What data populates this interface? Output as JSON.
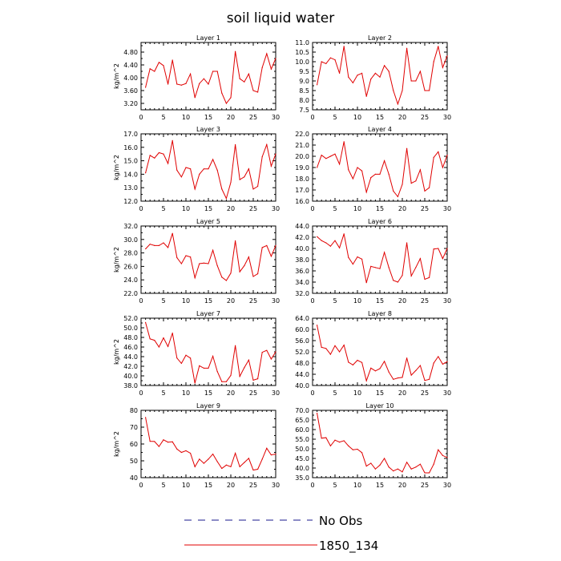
{
  "figure": {
    "title": "soil liquid water",
    "legend": {
      "placement": "bottom-center",
      "entries": [
        {
          "label": "No Obs",
          "style": "dashed",
          "color": "#1a1a8c"
        },
        {
          "label": "1850_134",
          "style": "solid",
          "color": "#e00000"
        }
      ]
    },
    "colors": {
      "series": "#e00000",
      "obs": "#1a1a8c",
      "axis": "#000000"
    }
  },
  "chart_data": [
    {
      "type": "line",
      "title": "Layer 1",
      "ylabel": "kg/m^2",
      "xlim": [
        0,
        30
      ],
      "ylim": [
        3.0,
        5.1
      ],
      "xticks": [
        "0",
        "5",
        "10",
        "15",
        "20",
        "25",
        "30"
      ],
      "yticks": [
        "3.20",
        "3.60",
        "4.00",
        "4.40",
        "4.80"
      ],
      "x": [
        1,
        2,
        3,
        4,
        5,
        6,
        7,
        8,
        9,
        10,
        11,
        12,
        13,
        14,
        15,
        16,
        17,
        18,
        19,
        20,
        21,
        22,
        23,
        24,
        25,
        26,
        27,
        28,
        29,
        30
      ],
      "series": [
        {
          "values": [
            3.7,
            4.28,
            4.2,
            4.48,
            4.38,
            3.8,
            4.55,
            3.8,
            3.77,
            3.82,
            4.12,
            3.38,
            3.82,
            3.97,
            3.8,
            4.2,
            4.2,
            3.52,
            3.2,
            3.38,
            4.82,
            3.97,
            3.87,
            4.12,
            3.6,
            3.55,
            4.32,
            4.75,
            4.27,
            4.6
          ]
        }
      ]
    },
    {
      "type": "line",
      "title": "Layer 2",
      "ylabel": "",
      "xlim": [
        0,
        30
      ],
      "ylim": [
        7.5,
        11.0
      ],
      "xticks": [
        "0",
        "5",
        "10",
        "15",
        "20",
        "25",
        "30"
      ],
      "yticks": [
        "7.5",
        "8.0",
        "8.5",
        "9.0",
        "9.5",
        "10.0",
        "10.5",
        "11.0"
      ],
      "x": [
        1,
        2,
        3,
        4,
        5,
        6,
        7,
        8,
        9,
        10,
        11,
        12,
        13,
        14,
        15,
        16,
        17,
        18,
        19,
        20,
        21,
        22,
        23,
        24,
        25,
        26,
        27,
        28,
        29,
        30
      ],
      "series": [
        {
          "values": [
            8.8,
            10.0,
            9.9,
            10.2,
            10.1,
            9.4,
            10.8,
            9.2,
            8.9,
            9.3,
            9.4,
            8.2,
            9.1,
            9.4,
            9.2,
            9.8,
            9.5,
            8.5,
            7.8,
            8.5,
            10.7,
            9.0,
            9.0,
            9.5,
            8.5,
            8.5,
            10.0,
            10.8,
            9.7,
            10.3
          ]
        }
      ]
    },
    {
      "type": "line",
      "title": "Layer 3",
      "ylabel": "kg/m^2",
      "xlim": [
        0,
        30
      ],
      "ylim": [
        12.0,
        17.0
      ],
      "xticks": [
        "0",
        "5",
        "10",
        "15",
        "20",
        "25",
        "30"
      ],
      "yticks": [
        "12.0",
        "13.0",
        "14.0",
        "15.0",
        "16.0",
        "17.0"
      ],
      "x": [
        1,
        2,
        3,
        4,
        5,
        6,
        7,
        8,
        9,
        10,
        11,
        12,
        13,
        14,
        15,
        16,
        17,
        18,
        19,
        20,
        21,
        22,
        23,
        24,
        25,
        26,
        27,
        28,
        29,
        30
      ],
      "series": [
        {
          "values": [
            14.1,
            15.4,
            15.2,
            15.6,
            15.5,
            14.8,
            16.5,
            14.3,
            13.8,
            14.5,
            14.4,
            12.9,
            14.0,
            14.4,
            14.4,
            15.1,
            14.3,
            12.9,
            12.2,
            13.4,
            16.2,
            13.6,
            13.8,
            14.4,
            12.9,
            13.1,
            15.3,
            16.2,
            14.6,
            15.5
          ]
        }
      ]
    },
    {
      "type": "line",
      "title": "Layer 4",
      "ylabel": "",
      "xlim": [
        0,
        30
      ],
      "ylim": [
        16.0,
        22.0
      ],
      "xticks": [
        "0",
        "5",
        "10",
        "15",
        "20",
        "25",
        "30"
      ],
      "yticks": [
        "16.0",
        "17.0",
        "18.0",
        "19.0",
        "20.0",
        "21.0",
        "22.0"
      ],
      "x": [
        1,
        2,
        3,
        4,
        5,
        6,
        7,
        8,
        9,
        10,
        11,
        12,
        13,
        14,
        15,
        16,
        17,
        18,
        19,
        20,
        21,
        22,
        23,
        24,
        25,
        26,
        27,
        28,
        29,
        30
      ],
      "series": [
        {
          "values": [
            19.0,
            20.1,
            19.8,
            20.0,
            20.2,
            19.3,
            21.3,
            18.8,
            18.0,
            19.0,
            18.7,
            16.8,
            18.1,
            18.4,
            18.4,
            19.6,
            18.4,
            16.9,
            16.4,
            17.5,
            20.7,
            17.6,
            17.8,
            18.8,
            16.9,
            17.2,
            19.9,
            20.4,
            19.0,
            20.1
          ]
        }
      ]
    },
    {
      "type": "line",
      "title": "Layer 5",
      "ylabel": "kg/m^2",
      "xlim": [
        0,
        30
      ],
      "ylim": [
        22.0,
        32.0
      ],
      "xticks": [
        "0",
        "5",
        "10",
        "15",
        "20",
        "25",
        "30"
      ],
      "yticks": [
        "22.0",
        "24.0",
        "26.0",
        "28.0",
        "30.0",
        "32.0"
      ],
      "x": [
        1,
        2,
        3,
        4,
        5,
        6,
        7,
        8,
        9,
        10,
        11,
        12,
        13,
        14,
        15,
        16,
        17,
        18,
        19,
        20,
        21,
        22,
        23,
        24,
        25,
        26,
        27,
        28,
        29,
        30
      ],
      "series": [
        {
          "values": [
            28.6,
            29.3,
            29.1,
            29.1,
            29.5,
            28.8,
            30.9,
            27.3,
            26.4,
            27.6,
            27.4,
            24.3,
            26.4,
            26.5,
            26.4,
            28.4,
            26.1,
            24.4,
            23.9,
            25.0,
            29.8,
            25.2,
            26.1,
            27.4,
            24.5,
            24.9,
            28.8,
            29.1,
            27.5,
            29.1
          ]
        }
      ]
    },
    {
      "type": "line",
      "title": "Layer 6",
      "ylabel": "",
      "xlim": [
        0,
        30
      ],
      "ylim": [
        32.0,
        44.0
      ],
      "xticks": [
        "0",
        "5",
        "10",
        "15",
        "20",
        "25",
        "30"
      ],
      "yticks": [
        "32.0",
        "34.0",
        "36.0",
        "38.0",
        "40.0",
        "42.0",
        "44.0"
      ],
      "x": [
        1,
        2,
        3,
        4,
        5,
        6,
        7,
        8,
        9,
        10,
        11,
        12,
        13,
        14,
        15,
        16,
        17,
        18,
        19,
        20,
        21,
        22,
        23,
        24,
        25,
        26,
        27,
        28,
        29,
        30
      ],
      "series": [
        {
          "values": [
            42.1,
            41.4,
            41.0,
            40.4,
            41.4,
            40.1,
            42.6,
            38.4,
            37.2,
            38.5,
            38.1,
            33.9,
            36.8,
            36.6,
            36.4,
            39.3,
            36.6,
            34.3,
            34.0,
            35.2,
            41.0,
            35.1,
            36.6,
            38.2,
            34.5,
            34.8,
            39.9,
            40.0,
            38.2,
            40.0
          ]
        }
      ]
    },
    {
      "type": "line",
      "title": "Layer 7",
      "ylabel": "kg/m^2",
      "xlim": [
        0,
        30
      ],
      "ylim": [
        38.0,
        52.0
      ],
      "xticks": [
        "0",
        "5",
        "10",
        "15",
        "20",
        "25",
        "30"
      ],
      "yticks": [
        "38.0",
        "40.0",
        "42.0",
        "44.0",
        "46.0",
        "48.0",
        "50.0",
        "52.0"
      ],
      "x": [
        1,
        2,
        3,
        4,
        5,
        6,
        7,
        8,
        9,
        10,
        11,
        12,
        13,
        14,
        15,
        16,
        17,
        18,
        19,
        20,
        21,
        22,
        23,
        24,
        25,
        26,
        27,
        28,
        29,
        30
      ],
      "series": [
        {
          "values": [
            51.1,
            47.7,
            47.4,
            46.0,
            47.9,
            46.1,
            48.9,
            43.7,
            42.6,
            44.3,
            43.7,
            38.5,
            42.1,
            41.6,
            41.6,
            44.1,
            40.9,
            38.8,
            38.8,
            40.1,
            46.3,
            39.9,
            41.7,
            43.3,
            39.1,
            39.4,
            44.9,
            45.3,
            43.5,
            45.0
          ]
        }
      ]
    },
    {
      "type": "line",
      "title": "Layer 8",
      "ylabel": "",
      "xlim": [
        0,
        30
      ],
      "ylim": [
        40.0,
        64.0
      ],
      "xticks": [
        "0",
        "5",
        "10",
        "15",
        "20",
        "25",
        "30"
      ],
      "yticks": [
        "40.0",
        "44.0",
        "48.0",
        "52.0",
        "56.0",
        "60.0",
        "64.0"
      ],
      "x": [
        1,
        2,
        3,
        4,
        5,
        6,
        7,
        8,
        9,
        10,
        11,
        12,
        13,
        14,
        15,
        16,
        17,
        18,
        19,
        20,
        21,
        22,
        23,
        24,
        25,
        26,
        27,
        28,
        29,
        30
      ],
      "series": [
        {
          "values": [
            61.5,
            53.6,
            53.2,
            51.1,
            54.2,
            52.0,
            54.4,
            48.3,
            47.3,
            49.0,
            48.2,
            41.7,
            46.2,
            45.2,
            46.0,
            48.6,
            44.8,
            42.2,
            42.7,
            42.9,
            49.8,
            43.7,
            45.3,
            47.1,
            41.8,
            42.2,
            48.0,
            50.3,
            47.6,
            48.5
          ]
        }
      ]
    },
    {
      "type": "line",
      "title": "Layer 9",
      "ylabel": "kg/m^2",
      "xlim": [
        0,
        30
      ],
      "ylim": [
        40,
        80
      ],
      "xticks": [
        "0",
        "5",
        "10",
        "15",
        "20",
        "25",
        "30"
      ],
      "yticks": [
        "40",
        "50",
        "60",
        "70",
        "80"
      ],
      "x": [
        1,
        2,
        3,
        4,
        5,
        6,
        7,
        8,
        9,
        10,
        11,
        12,
        13,
        14,
        15,
        16,
        17,
        18,
        19,
        20,
        21,
        22,
        23,
        24,
        25,
        26,
        27,
        28,
        29,
        30
      ],
      "series": [
        {
          "values": [
            75.8,
            61.6,
            61.5,
            58.5,
            62.5,
            61.1,
            61.3,
            57.0,
            55.0,
            56.0,
            54.5,
            46.5,
            51.0,
            48.5,
            51.0,
            54.0,
            49.5,
            45.5,
            47.5,
            46.5,
            54.5,
            46.5,
            49.0,
            51.5,
            44.5,
            45.0,
            51.0,
            57.5,
            53.5,
            54.0
          ]
        }
      ]
    },
    {
      "type": "line",
      "title": "Layer 10",
      "ylabel": "",
      "xlim": [
        0,
        30
      ],
      "ylim": [
        35.0,
        70.0
      ],
      "xticks": [
        "0",
        "5",
        "10",
        "15",
        "20",
        "25",
        "30"
      ],
      "yticks": [
        "35.0",
        "40.0",
        "45.0",
        "50.0",
        "55.0",
        "60.0",
        "65.0",
        "70.0"
      ],
      "x": [
        1,
        2,
        3,
        4,
        5,
        6,
        7,
        8,
        9,
        10,
        11,
        12,
        13,
        14,
        15,
        16,
        17,
        18,
        19,
        20,
        21,
        22,
        23,
        24,
        25,
        26,
        27,
        28,
        29,
        30
      ],
      "series": [
        {
          "values": [
            68.5,
            55.5,
            55.8,
            51.5,
            54.5,
            53.5,
            54.2,
            51.5,
            49.5,
            49.8,
            48.0,
            41.0,
            42.5,
            39.5,
            41.5,
            45.0,
            40.5,
            38.5,
            39.5,
            38.0,
            43.0,
            39.5,
            40.5,
            42.0,
            37.5,
            37.5,
            42.0,
            49.5,
            46.5,
            45.5
          ]
        }
      ]
    }
  ]
}
